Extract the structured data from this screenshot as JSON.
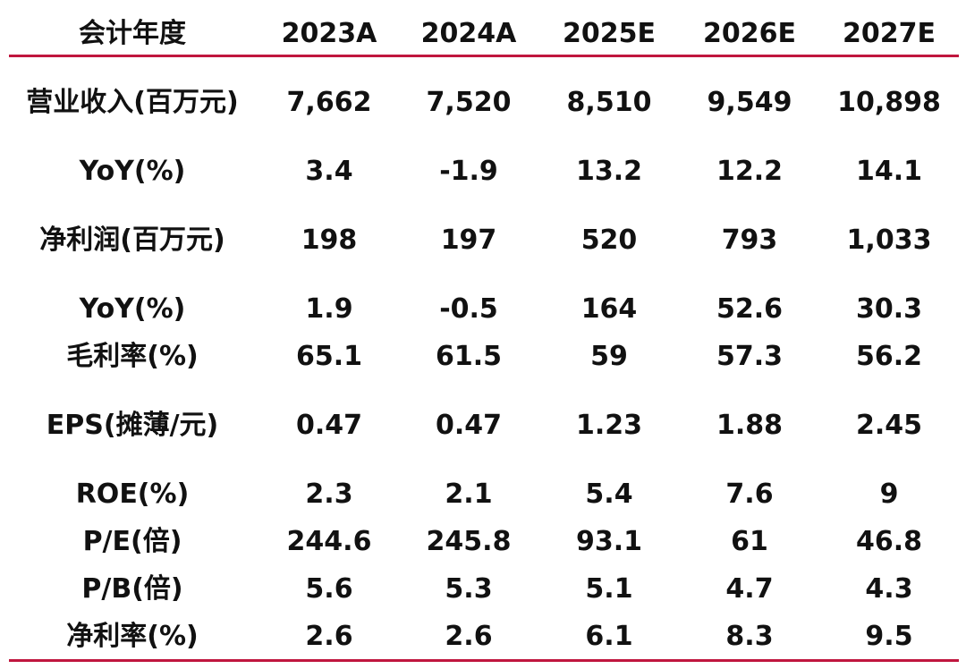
{
  "table": {
    "header": [
      "会计年度",
      "2023A",
      "2024A",
      "2025E",
      "2026E",
      "2027E"
    ],
    "rows": [
      [
        "营业收入(百万元)",
        "7,662",
        "7,520",
        "8,510",
        "9,549",
        "10,898"
      ],
      [
        "YoY(%)",
        "3.4",
        "-1.9",
        "13.2",
        "12.2",
        "14.1"
      ],
      [
        "净利润(百万元)",
        "198",
        "197",
        "520",
        "793",
        "1,033"
      ],
      [
        "YoY(%)",
        "1.9",
        "-0.5",
        "164",
        "52.6",
        "30.3"
      ],
      [
        "毛利率(%)",
        "65.1",
        "61.5",
        "59",
        "57.3",
        "56.2"
      ],
      [
        "EPS(摊薄/元)",
        "0.47",
        "0.47",
        "1.23",
        "1.88",
        "2.45"
      ],
      [
        "ROE(%)",
        "2.3",
        "2.1",
        "5.4",
        "7.6",
        "9"
      ],
      [
        "P/E(倍)",
        "244.6",
        "245.8",
        "93.1",
        "61",
        "46.8"
      ],
      [
        "P/B(倍)",
        "5.6",
        "5.3",
        "5.1",
        "4.7",
        "4.3"
      ],
      [
        "净利率(%)",
        "2.6",
        "2.6",
        "6.1",
        "8.3",
        "9.5"
      ]
    ]
  }
}
